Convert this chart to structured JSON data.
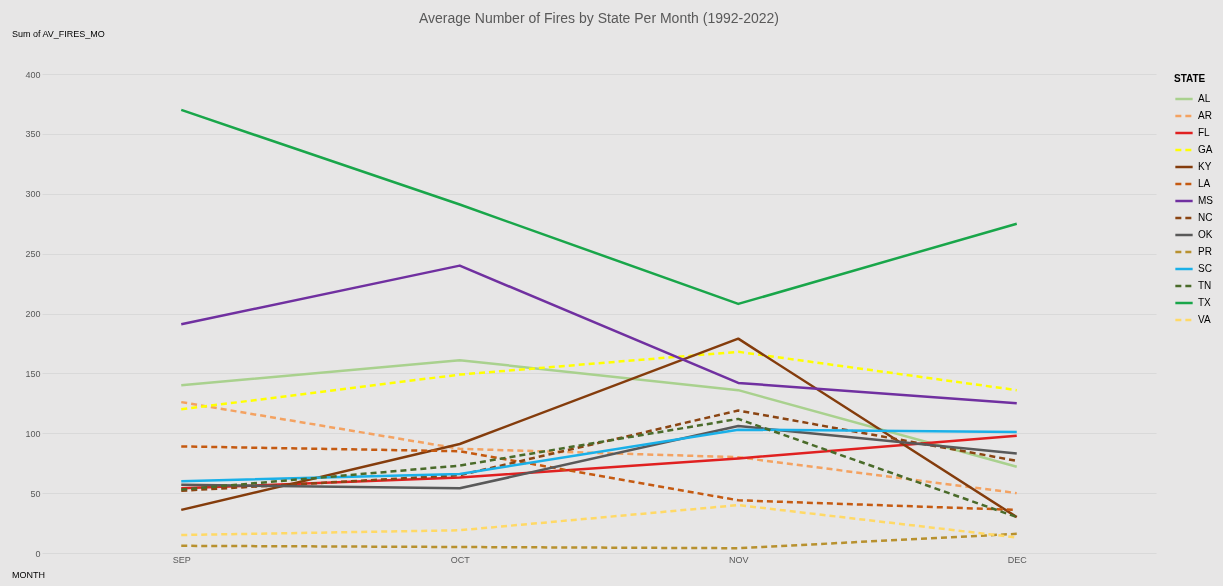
{
  "chart_data": {
    "type": "line",
    "title": "Average Number of Fires by State Per Month (1992-2022)",
    "legend_title": "STATE",
    "categories": [
      "SEP",
      "OCT",
      "NOV",
      "DEC"
    ],
    "ylim": [
      0,
      400
    ],
    "yticks": [
      0,
      50,
      100,
      150,
      200,
      250,
      300,
      350,
      400
    ],
    "grid": "y",
    "legend": "right",
    "marker": "none",
    "annotations": [
      "Sum of AV_FIRES_MO",
      "MONTH"
    ],
    "series": [
      {
        "name": "AL",
        "color": "#a9d18e",
        "line_style": "solid",
        "values": [
          140,
          161,
          136,
          72
        ]
      },
      {
        "name": "AR",
        "color": "#f4a261",
        "line_style": "dashed",
        "values": [
          126,
          87,
          80,
          50
        ]
      },
      {
        "name": "FL",
        "color": "#e02020",
        "line_style": "solid",
        "values": [
          54,
          63,
          79,
          98
        ]
      },
      {
        "name": "GA",
        "color": "#ffff00",
        "line_style": "dashed",
        "values": [
          120,
          149,
          168,
          136
        ]
      },
      {
        "name": "KY",
        "color": "#843c0c",
        "line_style": "solid",
        "values": [
          36,
          91,
          179,
          30
        ]
      },
      {
        "name": "LA",
        "color": "#c55a11",
        "line_style": "dashed",
        "values": [
          89,
          85,
          44,
          36
        ]
      },
      {
        "name": "MS",
        "color": "#7030a0",
        "line_style": "solid",
        "values": [
          191,
          240,
          142,
          125
        ]
      },
      {
        "name": "NC",
        "color": "#8b4513",
        "line_style": "dashed",
        "values": [
          52,
          65,
          119,
          77
        ]
      },
      {
        "name": "OK",
        "color": "#595959",
        "line_style": "solid",
        "values": [
          57,
          54,
          106,
          83
        ]
      },
      {
        "name": "PR",
        "color": "#b8912f",
        "line_style": "dashed",
        "values": [
          6,
          5,
          4,
          16
        ]
      },
      {
        "name": "SC",
        "color": "#1ab0e8",
        "line_style": "solid",
        "values": [
          60,
          66,
          103,
          101
        ]
      },
      {
        "name": "TN",
        "color": "#4a6b2a",
        "line_style": "dashed",
        "values": [
          53,
          73,
          112,
          30
        ]
      },
      {
        "name": "TX",
        "color": "#19a64a",
        "line_style": "solid",
        "values": [
          370,
          291,
          208,
          275
        ]
      },
      {
        "name": "VA",
        "color": "#ffd966",
        "line_style": "dashed",
        "values": [
          15,
          19,
          40,
          13
        ]
      }
    ]
  }
}
